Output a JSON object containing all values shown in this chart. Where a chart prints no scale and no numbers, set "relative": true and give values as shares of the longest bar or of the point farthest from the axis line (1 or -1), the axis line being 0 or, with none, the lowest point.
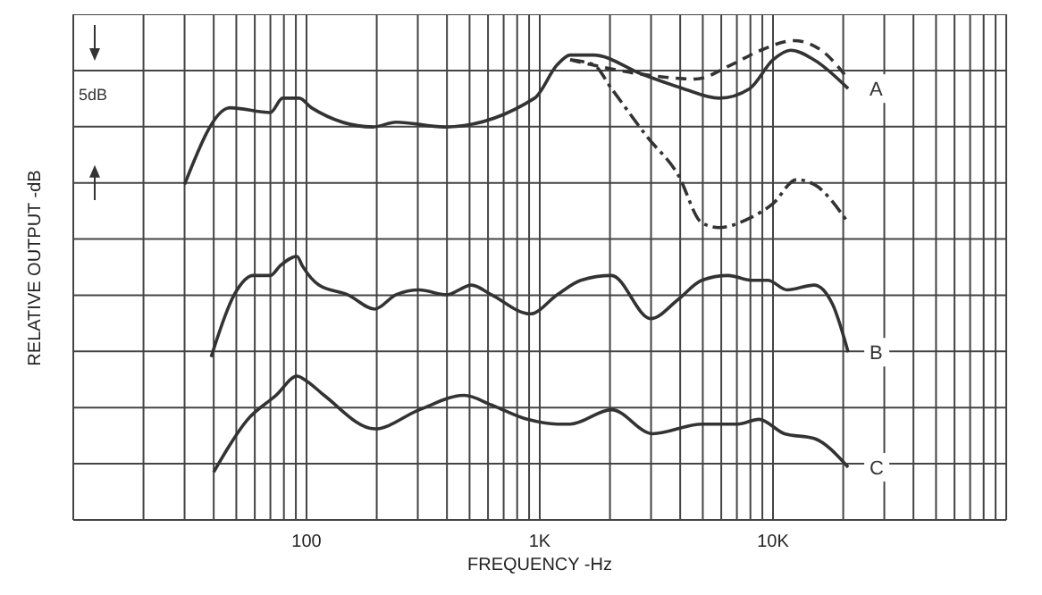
{
  "chart_data": {
    "type": "line",
    "relative": true,
    "xlabel": "FREQUENCY -Hz",
    "ylabel": "RELATIVE OUTPUT -dB",
    "log": "x",
    "grid": true,
    "marker": "none",
    "annotations": [
      "5dB"
    ],
    "xlim": [
      10,
      100000
    ],
    "xticks": [
      {
        "value": 10,
        "label": null
      },
      {
        "value": 20,
        "label": null
      },
      {
        "value": 30,
        "label": null
      },
      {
        "value": 40,
        "label": null
      },
      {
        "value": 50,
        "label": null
      },
      {
        "value": 60,
        "label": null
      },
      {
        "value": 70,
        "label": null
      },
      {
        "value": 80,
        "label": null
      },
      {
        "value": 90,
        "label": null
      },
      100,
      {
        "value": 200,
        "label": null
      },
      {
        "value": 300,
        "label": null
      },
      {
        "value": 400,
        "label": null
      },
      {
        "value": 500,
        "label": null
      },
      {
        "value": 600,
        "label": null
      },
      {
        "value": 700,
        "label": null
      },
      {
        "value": 800,
        "label": null
      },
      {
        "value": 900,
        "label": null
      },
      {
        "value": 1000,
        "label": "1K"
      },
      {
        "value": 2000,
        "label": null
      },
      {
        "value": 3000,
        "label": null
      },
      {
        "value": 4000,
        "label": null
      },
      {
        "value": 5000,
        "label": null
      },
      {
        "value": 6000,
        "label": null
      },
      {
        "value": 7000,
        "label": null
      },
      {
        "value": 8000,
        "label": null
      },
      {
        "value": 9000,
        "label": null
      },
      {
        "value": 10000,
        "label": "10K"
      },
      {
        "value": 20000,
        "label": null
      },
      {
        "value": 30000,
        "label": null
      },
      {
        "value": 40000,
        "label": null
      },
      {
        "value": 50000,
        "label": null
      },
      {
        "value": 60000,
        "label": null
      },
      {
        "value": 70000,
        "label": null
      },
      {
        "value": 80000,
        "label": null
      },
      {
        "value": 90000,
        "label": null
      },
      {
        "value": 100000,
        "label": null
      }
    ],
    "series": [
      {
        "name": "A",
        "color": "#333333",
        "line_style": "solid",
        "x": [
          30,
          47,
          70,
          79,
          93,
          105,
          193,
          242,
          390,
          950,
          1190,
          1350,
          1700,
          2740,
          4120,
          5860,
          7950,
          10000,
          11900,
          15000,
          21000
        ],
        "values": [
          0.7,
          0.86,
          0.85,
          0.88,
          0.88,
          0.86,
          0.82,
          0.83,
          0.82,
          0.88,
          0.95,
          0.97,
          0.97,
          0.93,
          0.9,
          0.88,
          0.9,
          0.96,
          0.98,
          0.96,
          0.9
        ]
      },
      {
        "color": "#333333",
        "line_style": "dashed",
        "x": [
          1350,
          2740,
          4650,
          6650,
          8860,
          12300,
          16100,
          21000
        ],
        "values": [
          0.96,
          0.93,
          0.92,
          0.95,
          0.98,
          1,
          0.98,
          0.92
        ]
      },
      {
        "color": "#333333",
        "line_style": "dashdot",
        "x": [
          1350,
          1700,
          2030,
          2880,
          3920,
          4950,
          5860,
          7950,
          10000,
          12600,
          15000,
          21000
        ],
        "values": [
          0.96,
          0.95,
          0.9,
          0.8,
          0.72,
          0.62,
          0.61,
          0.63,
          0.66,
          0.71,
          0.7,
          0.62
        ]
      },
      {
        "name": "B",
        "color": "#333333",
        "line_style": "solid",
        "x": [
          39,
          49,
          59,
          70,
          77,
          91,
          96,
          113,
          150,
          196,
          242,
          305,
          398,
          510,
          620,
          910,
          1190,
          1500,
          2030,
          2990,
          3920,
          4950,
          6430,
          8100,
          9500,
          11500,
          15000,
          18000,
          21000
        ],
        "values": [
          0.34,
          0.47,
          0.51,
          0.51,
          0.53,
          0.55,
          0.53,
          0.49,
          0.47,
          0.44,
          0.47,
          0.48,
          0.47,
          0.49,
          0.47,
          0.43,
          0.47,
          0.5,
          0.51,
          0.42,
          0.46,
          0.5,
          0.51,
          0.5,
          0.5,
          0.48,
          0.49,
          0.45,
          0.35
        ]
      },
      {
        "name": "C",
        "color": "#333333",
        "line_style": "solid",
        "x": [
          40,
          56,
          74,
          91,
          100,
          119,
          196,
          305,
          475,
          620,
          885,
          1190,
          1350,
          2030,
          3050,
          4950,
          7060,
          8700,
          11200,
          15000,
          21000
        ],
        "values": [
          0.1,
          0.21,
          0.26,
          0.3,
          0.29,
          0.26,
          0.19,
          0.23,
          0.26,
          0.24,
          0.21,
          0.2,
          0.2,
          0.23,
          0.18,
          0.2,
          0.2,
          0.21,
          0.18,
          0.17,
          0.11
        ]
      }
    ]
  }
}
